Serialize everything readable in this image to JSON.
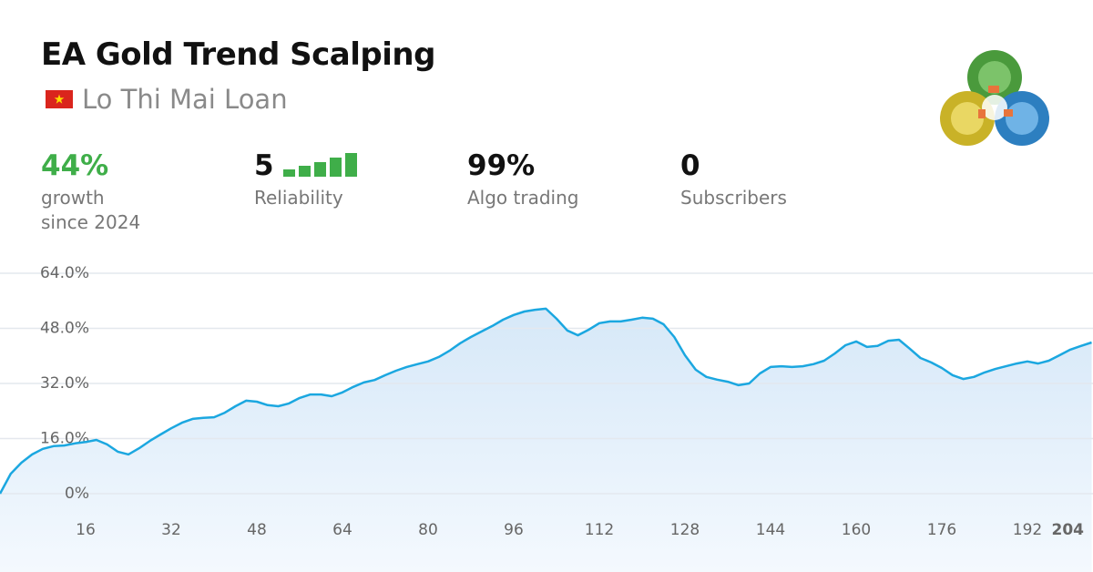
{
  "header": {
    "title": "EA Gold Trend Scalping",
    "author": "Lo Thi Mai Loan"
  },
  "stats": [
    {
      "value": "44%",
      "label_lines": [
        "growth",
        "since 2024"
      ]
    },
    {
      "value": "5",
      "label_lines": [
        "Reliability"
      ]
    },
    {
      "value": "99%",
      "label_lines": [
        "Algo trading"
      ]
    },
    {
      "value": "0",
      "label_lines": [
        "Subscribers"
      ]
    }
  ],
  "chart_data": {
    "type": "area",
    "color": "#1ba7e0",
    "fill": "#dcebf9",
    "x": [
      0,
      2,
      4,
      6,
      8,
      10,
      12,
      14,
      16,
      18,
      20,
      22,
      24,
      26,
      28,
      30,
      32,
      34,
      36,
      38,
      40,
      42,
      44,
      46,
      48,
      50,
      52,
      54,
      56,
      58,
      60,
      62,
      64,
      66,
      68,
      70,
      72,
      74,
      76,
      78,
      80,
      82,
      84,
      86,
      88,
      90,
      92,
      94,
      96,
      98,
      100,
      102,
      104,
      106,
      108,
      110,
      112,
      114,
      116,
      118,
      120,
      122,
      124,
      126,
      128,
      130,
      132,
      134,
      136,
      138,
      140,
      142,
      144,
      146,
      148,
      150,
      152,
      154,
      156,
      158,
      160,
      162,
      164,
      166,
      168,
      170,
      172,
      174,
      176,
      178,
      180,
      182,
      184,
      186,
      188,
      190,
      192,
      194,
      196,
      198,
      200,
      202,
      204
    ],
    "values": [
      0,
      5.8,
      9,
      11.4,
      13,
      13.8,
      14,
      14.6,
      15,
      15.6,
      14.3,
      12.2,
      11.4,
      13.2,
      15.3,
      17.2,
      19,
      20.6,
      21.7,
      22,
      22.2,
      23.5,
      25.4,
      27,
      26.7,
      25.7,
      25.4,
      26.2,
      27.8,
      28.8,
      28.8,
      28.3,
      29.4,
      31,
      32.3,
      33,
      34.4,
      35.7,
      36.8,
      37.6,
      38.4,
      39.7,
      41.5,
      43.7,
      45.5,
      47.1,
      48.7,
      50.5,
      51.9,
      52.9,
      53.4,
      53.7,
      50.8,
      47.4,
      46,
      47.6,
      49.5,
      50,
      50,
      50.5,
      51.1,
      50.8,
      49.2,
      45.5,
      40.2,
      36,
      33.9,
      33.1,
      32.5,
      31.5,
      32,
      34.9,
      36.8,
      37,
      36.8,
      37,
      37.6,
      38.6,
      40.7,
      43.1,
      44.2,
      42.6,
      42.9,
      44.4,
      44.7,
      42.1,
      39.4,
      38.1,
      36.5,
      34.4,
      33.3,
      33.9,
      35.2,
      36.2,
      37,
      37.8,
      38.4,
      37.8,
      38.6,
      40.2,
      41.8,
      42.9,
      43.9
    ],
    "xlim": [
      0,
      204
    ],
    "ylim": [
      0,
      64
    ],
    "xticks": [
      16,
      32,
      48,
      64,
      80,
      96,
      112,
      128,
      144,
      160,
      176,
      192,
      204
    ],
    "yticks": [
      {
        "value": 0,
        "label": "0%"
      },
      {
        "value": 16,
        "label": "16.0%"
      },
      {
        "value": 32,
        "label": "32.0%"
      },
      {
        "value": 48,
        "label": "48.0%"
      },
      {
        "value": 64,
        "label": "64.0%"
      }
    ],
    "grid": true
  }
}
